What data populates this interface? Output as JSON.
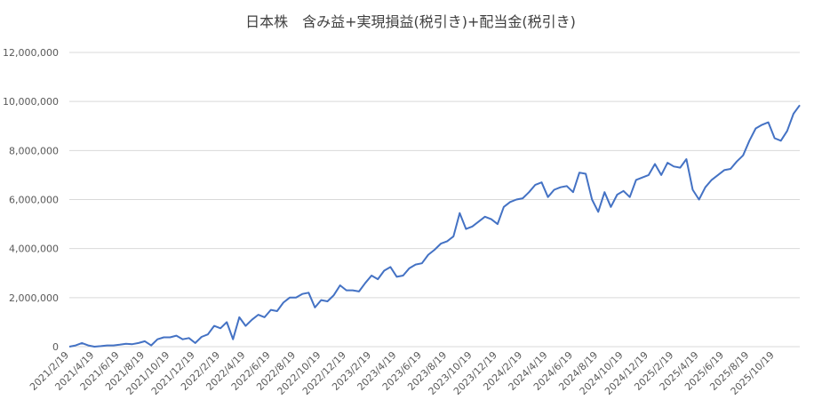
{
  "chart_data": {
    "type": "line",
    "title": "日本株　含み益+実現損益(税引き)+配当金(税引き)",
    "categories": [
      "2021/2/19",
      null,
      null,
      null,
      "2021/4/19",
      null,
      null,
      null,
      "2021/6/19",
      null,
      null,
      null,
      "2021/8/19",
      null,
      null,
      null,
      "2021/10/19",
      null,
      null,
      null,
      "2021/12/19",
      null,
      null,
      null,
      "2022/2/19",
      null,
      null,
      null,
      "2022/4/19",
      null,
      null,
      null,
      "2022/6/19",
      null,
      null,
      null,
      "2022/8/19",
      null,
      null,
      null,
      "2022/10/19",
      null,
      null,
      null,
      "2022/12/19",
      null,
      null,
      null,
      "2023/2/19",
      null,
      null,
      null,
      "2023/4/19",
      null,
      null,
      null,
      "2023/6/19",
      null,
      null,
      null,
      "2023/8/19",
      null,
      null,
      null,
      "2023/10/19",
      null,
      null,
      null,
      "2023/12/19",
      null,
      null,
      null,
      "2024/2/19",
      null,
      null,
      null,
      "2024/4/19",
      null,
      null,
      null,
      "2024/6/19",
      null,
      null,
      null,
      "2024/8/19",
      null,
      null,
      null,
      "2024/10/19",
      null,
      null,
      null,
      "2024/12/19",
      null,
      null,
      null,
      "2025/2/19",
      null,
      null,
      null,
      "2025/4/19",
      null,
      null,
      null,
      "2025/6/19",
      null,
      null,
      null,
      "2025/8/19",
      null,
      null,
      null,
      "2025/10/19",
      null,
      null,
      null,
      null
    ],
    "series": [
      {
        "color": "#4472c4",
        "values": [
          0,
          50000,
          150000,
          50000,
          0,
          20000,
          50000,
          50000,
          80000,
          120000,
          100000,
          150000,
          220000,
          50000,
          300000,
          380000,
          380000,
          450000,
          300000,
          350000,
          150000,
          400000,
          500000,
          850000,
          750000,
          1000000,
          300000,
          1200000,
          850000,
          1100000,
          1300000,
          1200000,
          1500000,
          1450000,
          1800000,
          2000000,
          2000000,
          2150000,
          2200000,
          1600000,
          1900000,
          1850000,
          2100000,
          2500000,
          2300000,
          2300000,
          2250000,
          2600000,
          2900000,
          2750000,
          3100000,
          3250000,
          2850000,
          2900000,
          3200000,
          3350000,
          3400000,
          3750000,
          3950000,
          4200000,
          4300000,
          4500000,
          5450000,
          4800000,
          4900000,
          5100000,
          5300000,
          5200000,
          5000000,
          5700000,
          5900000,
          6000000,
          6050000,
          6300000,
          6600000,
          6700000,
          6100000,
          6400000,
          6500000,
          6550000,
          6300000,
          7100000,
          7050000,
          6000000,
          5500000,
          6300000,
          5700000,
          6200000,
          6350000,
          6100000,
          6800000,
          6900000,
          7000000,
          7450000,
          7000000,
          7500000,
          7350000,
          7300000,
          7650000,
          6400000,
          6000000,
          6500000,
          6800000,
          7000000,
          7200000,
          7250000,
          7550000,
          7800000,
          8400000,
          8900000,
          9050000,
          9150000,
          8500000,
          8400000,
          8800000,
          9500000,
          9850000
        ]
      }
    ],
    "ylim": [
      0,
      12000000
    ],
    "yticks": [
      0,
      {
        "value": 2000000,
        "label": "2,000,000"
      },
      {
        "value": 4000000,
        "label": "4,000,000"
      },
      {
        "value": 6000000,
        "label": "6,000,000"
      },
      {
        "value": 8000000,
        "label": "8,000,000"
      },
      {
        "value": 10000000,
        "label": "10,000,000"
      },
      {
        "value": 12000000,
        "label": "12,000,000"
      }
    ],
    "grid": true
  }
}
